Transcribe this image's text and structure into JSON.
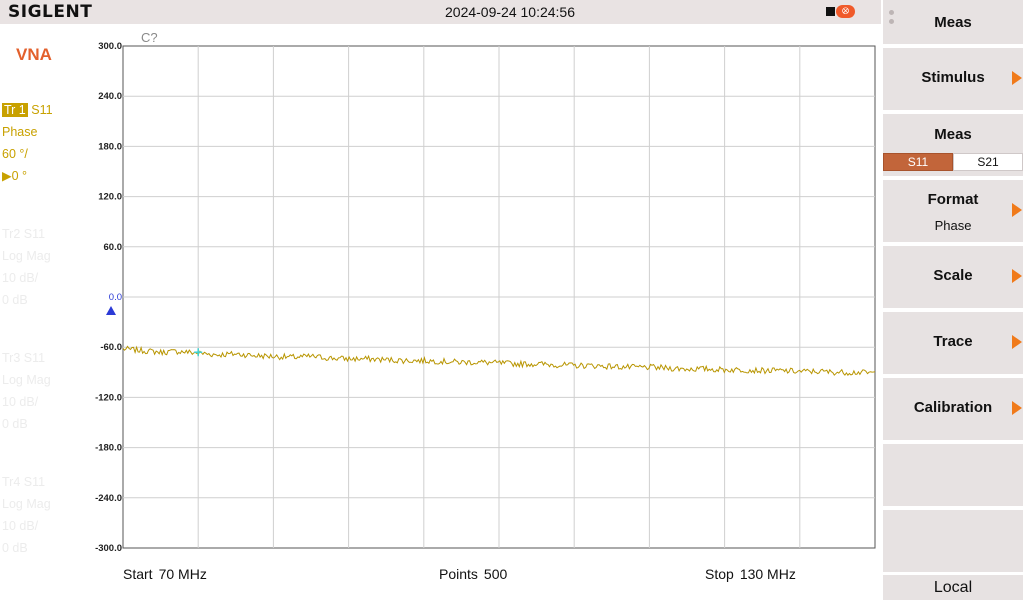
{
  "header": {
    "brand": "SIGLENT",
    "datetime": "2024-09-24 10:24:56",
    "icons": [
      "stop-icon",
      "usb-icon"
    ],
    "usb_symbol": "⭙"
  },
  "mode": "VNA",
  "traces": [
    {
      "id": "Tr1",
      "label": "Tr 1",
      "param": "S11",
      "format": "Phase",
      "scale": "60 °/",
      "ref_marker": "▶",
      "ref": "0 °",
      "active": true
    },
    {
      "id": "Tr2",
      "label": "Tr2",
      "param": "S11",
      "format": "Log Mag",
      "scale": "10 dB/",
      "ref": "0 dB",
      "active": false
    },
    {
      "id": "Tr3",
      "label": "Tr3",
      "param": "S11",
      "format": "Log Mag",
      "scale": "10 dB/",
      "ref": "0 dB",
      "active": false
    },
    {
      "id": "Tr4",
      "label": "Tr4",
      "param": "S11",
      "format": "Log Mag",
      "scale": "10 dB/",
      "ref": "0 dB",
      "active": false
    }
  ],
  "plot": {
    "cal_status": "C?",
    "ref_level_label": "0.0",
    "trace_color": "#b89500",
    "ref_color": "#2b3ad6"
  },
  "chart_data": {
    "type": "line",
    "title": "",
    "xlabel": "",
    "ylabel": "",
    "x_start_mhz": 70,
    "x_stop_mhz": 130,
    "points": 500,
    "ylim": [
      -300,
      300
    ],
    "y_ticks": [
      "300.0",
      "240.0",
      "180.0",
      "120.0",
      "60.0",
      "0.0",
      "-60.0",
      "-120.0",
      "-180.0",
      "-240.0",
      "-300.0"
    ],
    "grid": true,
    "x_divisions": 10,
    "series": [
      {
        "values": [
          -62,
          -64,
          -66,
          -65,
          -67,
          -69,
          -68,
          -70,
          -71,
          -72,
          -71,
          -73,
          -74,
          -74,
          -75,
          -76,
          -76,
          -77,
          -78,
          -78,
          -79,
          -80,
          -80,
          -81,
          -82,
          -82,
          -83,
          -84,
          -84,
          -85,
          -86,
          -86,
          -87,
          -87,
          -88,
          -88,
          -89,
          -89,
          -90,
          -90,
          -91
        ]
      }
    ],
    "marker": {
      "x_mhz": 76,
      "y": -66
    }
  },
  "footer": {
    "start_label": "Start",
    "start_value": "70 MHz",
    "points_label": "Points",
    "points_value": "500",
    "stop_label": "Stop",
    "stop_value": "130 MHz"
  },
  "softkeys": {
    "title": "Meas",
    "stimulus": "Stimulus",
    "meas": "Meas",
    "meas_options": [
      "S11",
      "S21"
    ],
    "format": "Format",
    "format_value": "Phase",
    "scale": "Scale",
    "trace": "Trace",
    "calibration": "Calibration",
    "local": "Local"
  }
}
